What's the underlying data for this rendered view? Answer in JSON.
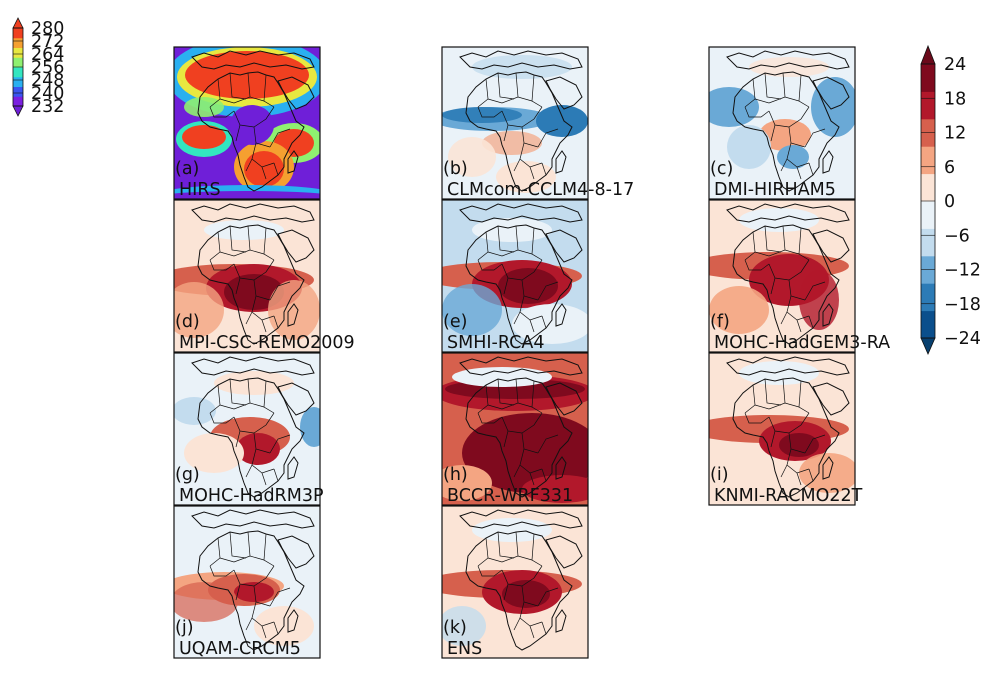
{
  "panels": [
    {
      "letter": "(a)",
      "name": "HIRS",
      "scheme": "abs"
    },
    {
      "letter": "(b)",
      "name": "CLMcom-CCLM4-8-17",
      "scheme": "b"
    },
    {
      "letter": "(c)",
      "name": "DMI-HIRHAM5",
      "scheme": "c"
    },
    {
      "letter": "(d)",
      "name": "MPI-CSC-REMO2009",
      "scheme": "d"
    },
    {
      "letter": "(e)",
      "name": "SMHI-RCA4",
      "scheme": "e"
    },
    {
      "letter": "(f)",
      "name": "MOHC-HadGEM3-RA",
      "scheme": "f"
    },
    {
      "letter": "(g)",
      "name": "MOHC-HadRM3P",
      "scheme": "g"
    },
    {
      "letter": "(h)",
      "name": "BCCR-WRF331",
      "scheme": "h"
    },
    {
      "letter": "(i)",
      "name": "KNMI-RACMO22T",
      "scheme": "i"
    },
    {
      "letter": "(j)",
      "name": "UQAM-CRCM5",
      "scheme": "j"
    },
    {
      "letter": "(k)",
      "name": "ENS",
      "scheme": "k"
    }
  ],
  "colorbar_absolute": {
    "ticks": [
      "280",
      "272",
      "264",
      "256",
      "248",
      "240",
      "232"
    ],
    "colors": [
      "#7b1fe0",
      "#3b55f0",
      "#2ab0f0",
      "#33e6c0",
      "#8ff070",
      "#e8e840",
      "#f5a030",
      "#f04020"
    ]
  },
  "colorbar_difference": {
    "ticks": [
      "24",
      "18",
      "12",
      "6",
      "0",
      "−6",
      "−12",
      "−18",
      "−24"
    ],
    "colors": [
      "#0b4f8c",
      "#2c7bb6",
      "#6aa9d6",
      "#c3dcee",
      "#eaf2f8",
      "#fbe4d6",
      "#f4a582",
      "#d6604d",
      "#b2182b",
      "#7f0a1e"
    ]
  }
}
